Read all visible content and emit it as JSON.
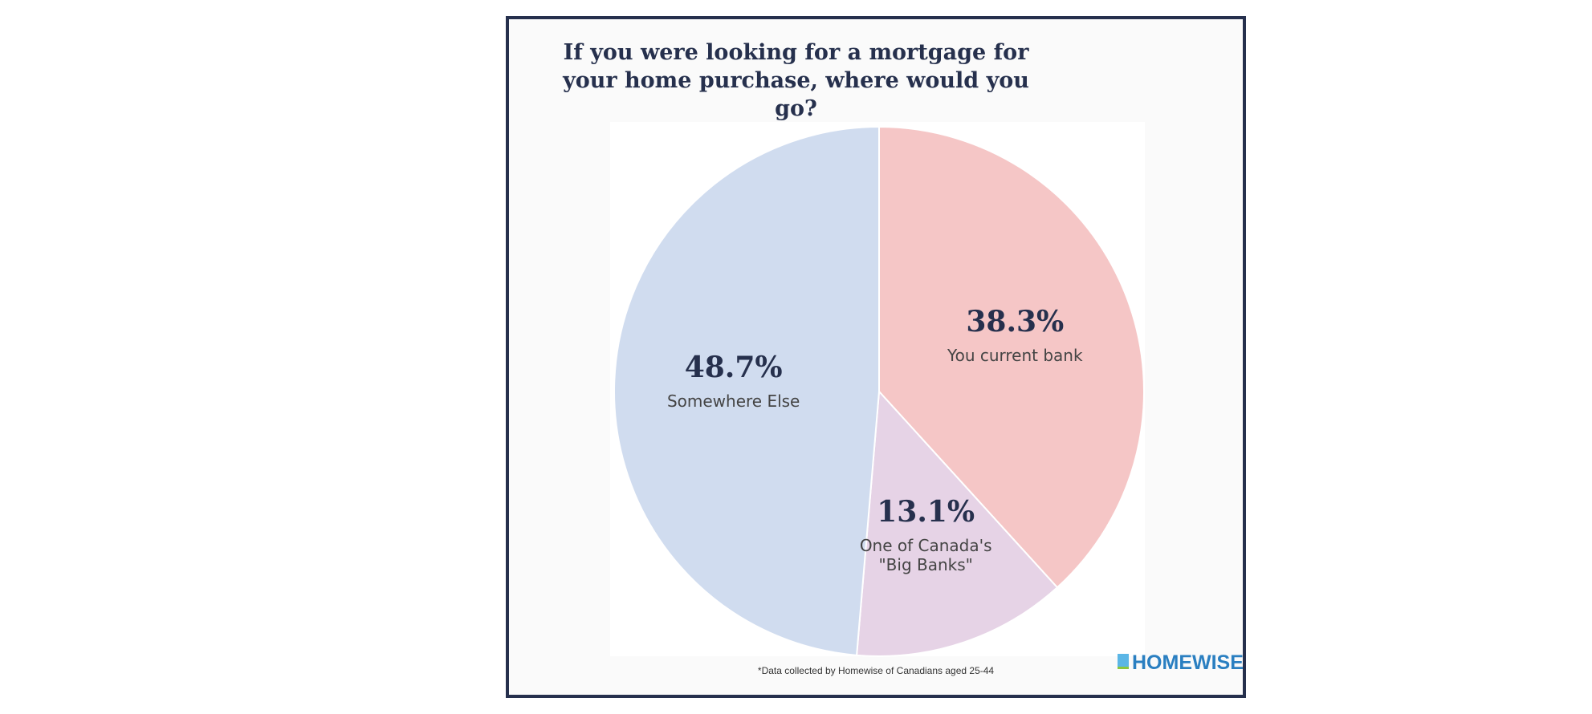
{
  "chart_data": {
    "type": "pie",
    "title": "If you were looking for a mortgage for your home purchase, where would you go?",
    "categories": [
      "You current bank",
      "One of Canada's \"Big Banks\"",
      "Somewhere Else"
    ],
    "values": [
      38.3,
      13.1,
      48.7
    ],
    "value_labels": [
      "38.3%",
      "13.1%",
      "48.7%"
    ],
    "colors": [
      "#f5c6c6",
      "#e6d3e6",
      "#d0dcef"
    ],
    "footnote": "*Data collected by Homewise of Canadians aged 25-44",
    "logo": "HOMEWISE"
  }
}
